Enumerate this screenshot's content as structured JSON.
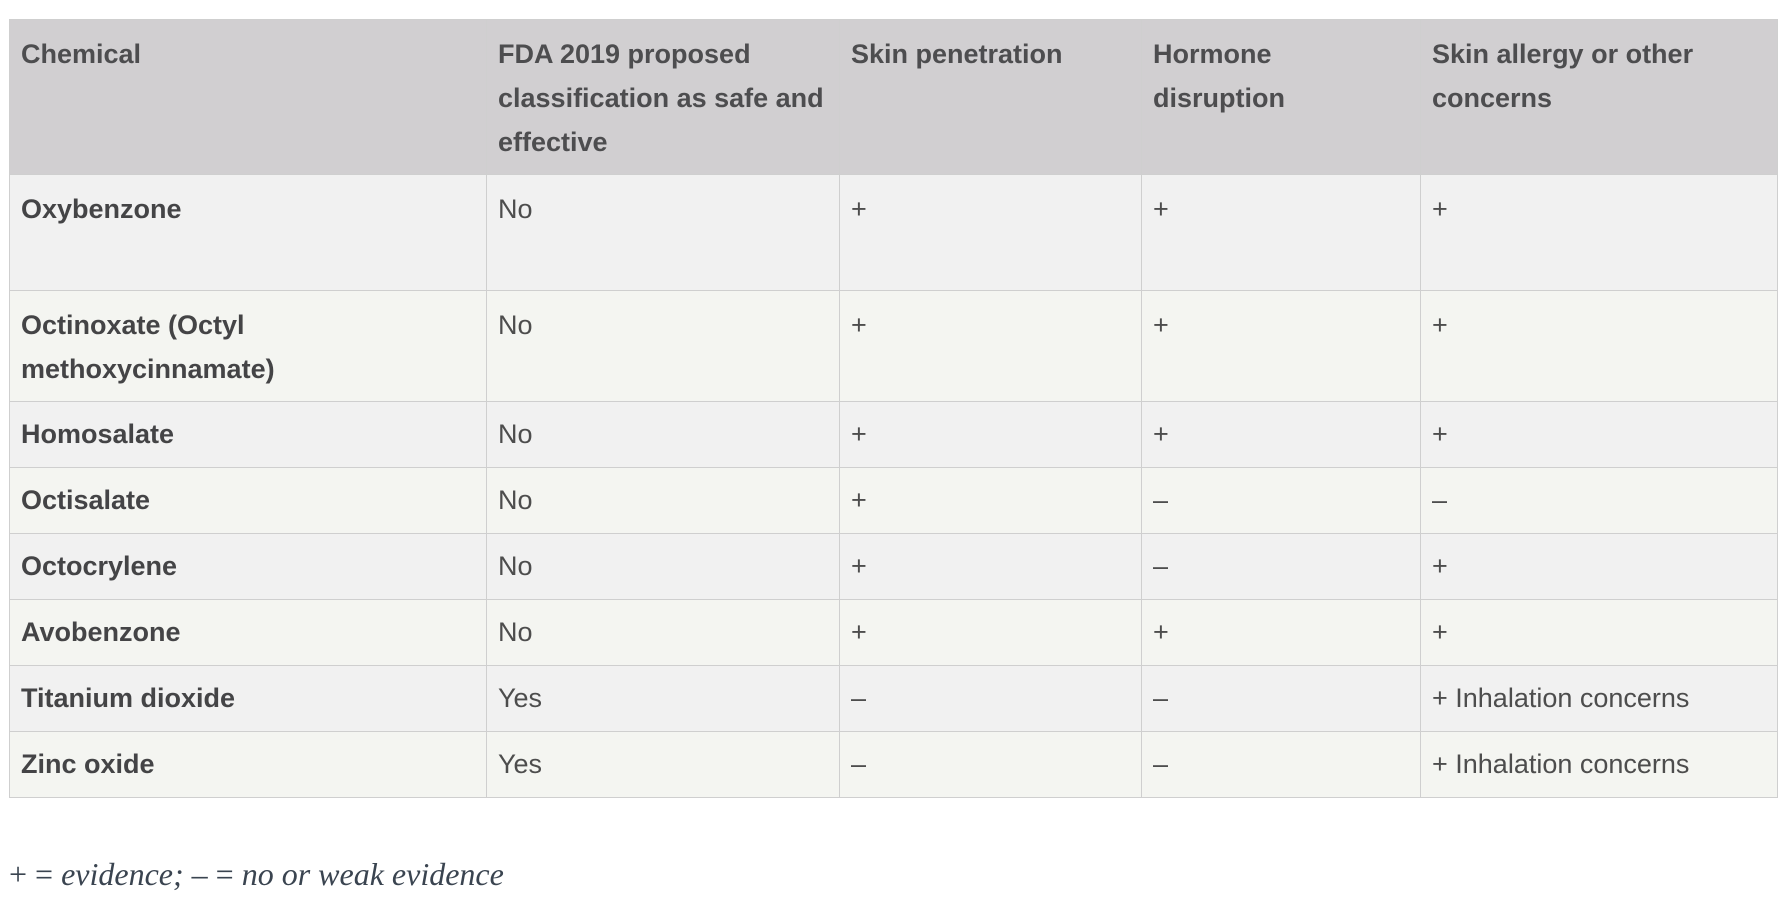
{
  "table": {
    "headers": [
      "Chemical",
      "FDA 2019 proposed classification as safe and effective",
      "Skin penetration",
      "Hormone disruption",
      "Skin allergy or other concerns"
    ],
    "rows": [
      [
        "Oxybenzone",
        "No",
        "+",
        "+",
        "+"
      ],
      [
        "Octinoxate (Octyl methoxycinnamate)",
        "No",
        "+",
        "+",
        "+"
      ],
      [
        "Homosalate",
        "No",
        "+",
        "+",
        "+"
      ],
      [
        "Octisalate",
        "No",
        "+",
        "–",
        "–"
      ],
      [
        "Octocrylene",
        "No",
        "+",
        "–",
        "+"
      ],
      [
        "Avobenzone",
        "No",
        "+",
        "+",
        "+"
      ],
      [
        "Titanium dioxide",
        "Yes",
        "–",
        "–",
        "+ Inhalation concerns"
      ],
      [
        "Zinc oxide",
        "Yes",
        "–",
        "–",
        "+ Inhalation concerns"
      ]
    ]
  },
  "footnote": {
    "plus_symbol": "+ = ",
    "plus_text": "evidence; ",
    "minus_symbol": "– = ",
    "minus_text": "no or weak evidence"
  }
}
